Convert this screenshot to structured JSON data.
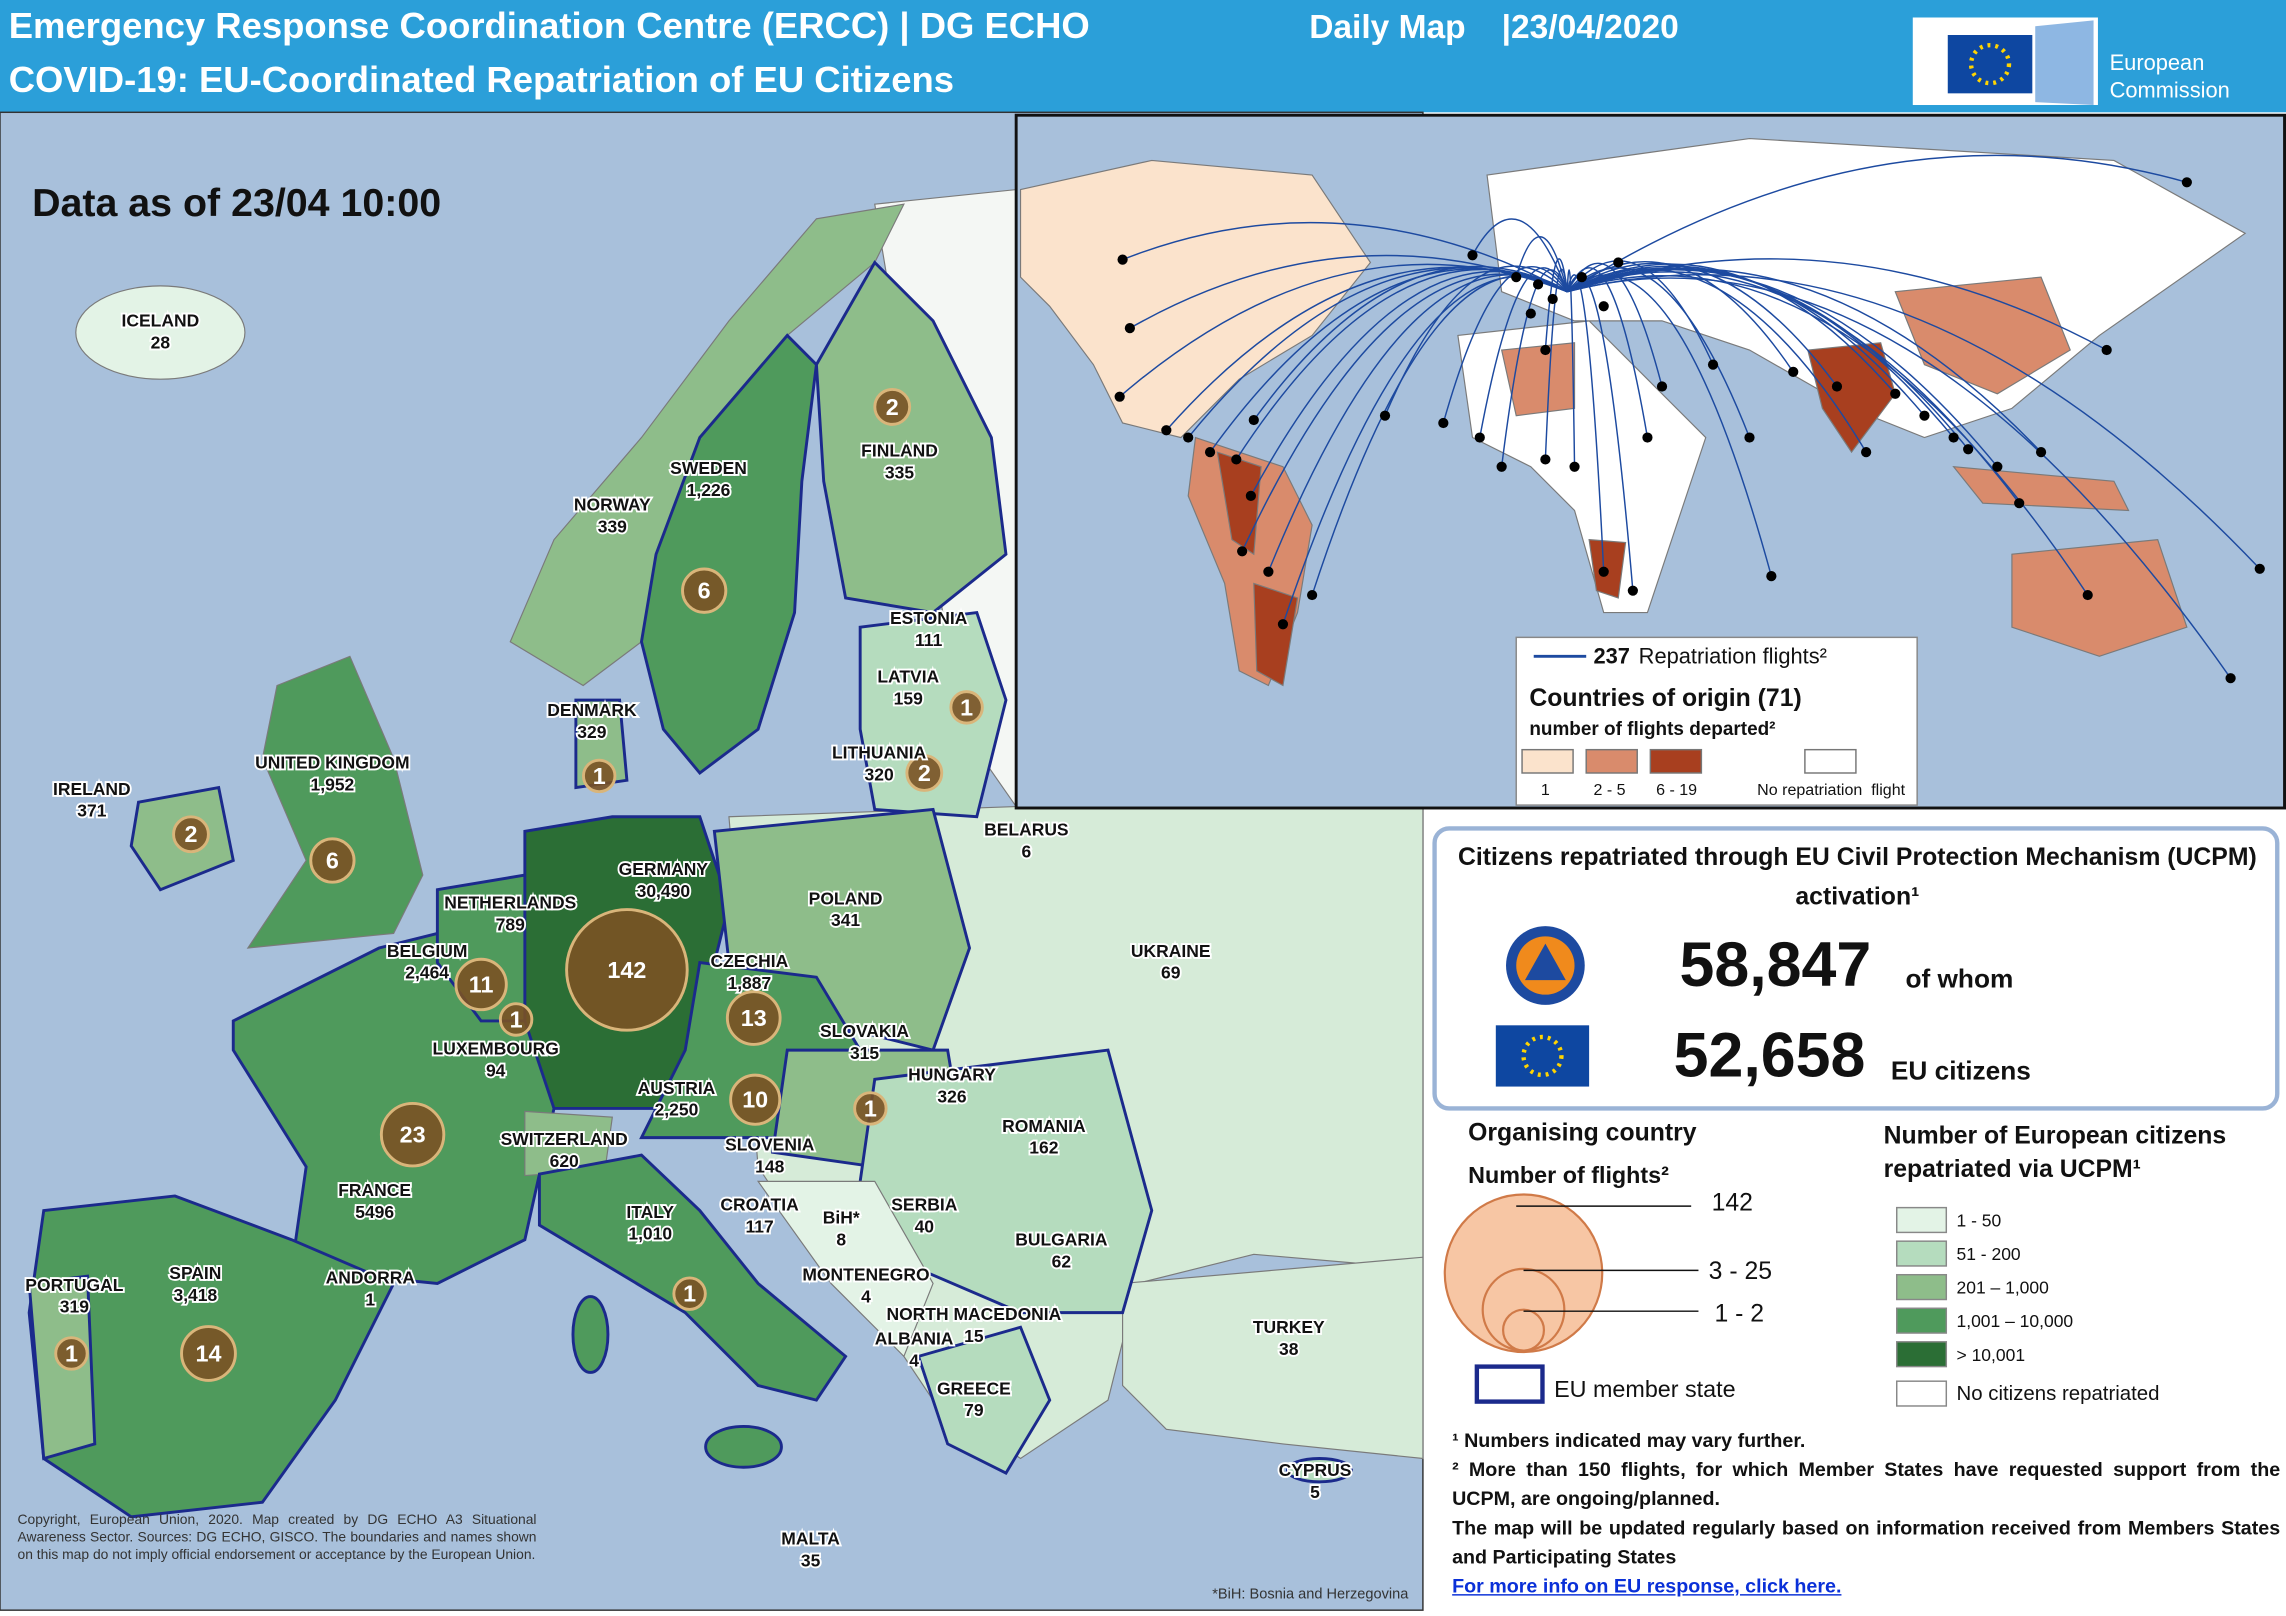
{
  "header": {
    "title": "Emergency Response Coordination Centre (ERCC) | DG ECHO",
    "map_type": "Daily Map",
    "date": "|23/04/2020",
    "subtitle": "COVID-19: EU-Coordinated Repatriation of EU Citizens",
    "logo": [
      "European",
      "Commission"
    ]
  },
  "europe_map": {
    "data_as_of": "Data as of 23/04 10:00",
    "countries": [
      {
        "name": "ICELAND",
        "citizens": "28"
      },
      {
        "name": "IRELAND",
        "citizens": "371",
        "flights": 2
      },
      {
        "name": "UNITED KINGDOM",
        "citizens": "1,952",
        "flights": 6
      },
      {
        "name": "NORWAY",
        "citizens": "339"
      },
      {
        "name": "SWEDEN",
        "citizens": "1,226",
        "flights": 6
      },
      {
        "name": "FINLAND",
        "citizens": "335",
        "flights": 2
      },
      {
        "name": "ESTONIA",
        "citizens": "111"
      },
      {
        "name": "LATVIA",
        "citizens": "159",
        "flights": 1
      },
      {
        "name": "LITHUANIA",
        "citizens": "320",
        "flights": 2
      },
      {
        "name": "DENMARK",
        "citizens": "329",
        "flights": 1
      },
      {
        "name": "NETHERLANDS",
        "citizens": "789"
      },
      {
        "name": "BELGIUM",
        "citizens": "2,464",
        "flights": 11
      },
      {
        "name": "GERMANY",
        "citizens": "30,490",
        "flights": 142
      },
      {
        "name": "LUXEMBOURG",
        "citizens": "94",
        "flights": 1
      },
      {
        "name": "POLAND",
        "citizens": "341"
      },
      {
        "name": "BELARUS",
        "citizens": "6"
      },
      {
        "name": "UKRAINE",
        "citizens": "69"
      },
      {
        "name": "CZECHIA",
        "citizens": "1,887",
        "flights": 13
      },
      {
        "name": "SLOVAKIA",
        "citizens": "315"
      },
      {
        "name": "HUNGARY",
        "citizens": "326",
        "flights": 1
      },
      {
        "name": "AUSTRIA",
        "citizens": "2,250",
        "flights": 10
      },
      {
        "name": "FRANCE",
        "citizens": "5496",
        "flights": 23
      },
      {
        "name": "SWITZERLAND",
        "citizens": "620"
      },
      {
        "name": "SLOVENIA",
        "citizens": "148"
      },
      {
        "name": "CROATIA",
        "citizens": "117"
      },
      {
        "name": "BiH*",
        "citizens": "8"
      },
      {
        "name": "SERBIA",
        "citizens": "40"
      },
      {
        "name": "ROMANIA",
        "citizens": "162"
      },
      {
        "name": "BULGARIA",
        "citizens": "62"
      },
      {
        "name": "ITALY",
        "citizens": "1,010",
        "flights": 1
      },
      {
        "name": "MONTENEGRO",
        "citizens": "4"
      },
      {
        "name": "NORTH MACEDONIA",
        "citizens": "15"
      },
      {
        "name": "ALBANIA",
        "citizens": "4"
      },
      {
        "name": "GREECE",
        "citizens": "79"
      },
      {
        "name": "TURKEY",
        "citizens": "38"
      },
      {
        "name": "CYPRUS",
        "citizens": "5"
      },
      {
        "name": "MALTA",
        "citizens": "35"
      },
      {
        "name": "SPAIN",
        "citizens": "3,418",
        "flights": 14
      },
      {
        "name": "PORTUGAL",
        "citizens": "319",
        "flights": 1
      },
      {
        "name": "ANDORRA",
        "citizens": "1"
      }
    ],
    "footnote": "*BiH: Bosnia and Herzegovina",
    "copyright": "Copyright, European Union, 2020. Map created by DG ECHO A3 Situational Awareness Sector. Sources: DG ECHO, GISCO. The boundaries and names shown on this map do not imply official endorsement or acceptance by the European Union."
  },
  "world_map": {
    "flights_count": "237",
    "flights_label": "Repatriation flights²",
    "origin_title": "Countries of origin (71)",
    "origin_subtitle": "number of flights departed²",
    "classes": [
      "1",
      "2 - 5",
      "6 - 19",
      "No repatriation  flight"
    ]
  },
  "summary": {
    "title": "Citizens repatriated through EU Civil Protection Mechanism (UCPM) activation¹",
    "total": "58,847",
    "total_note": "of whom",
    "eu": "52,658",
    "eu_note": "EU citizens"
  },
  "legend": {
    "organising_title": "Organising country",
    "flights_title": "Number of flights²",
    "sizes": [
      "142",
      "3 - 25",
      "1 - 2"
    ],
    "member_state": "EU member state",
    "citizens_title": [
      "Number of European citizens",
      "repatriated via UCPM¹"
    ],
    "classes": [
      "1 - 50",
      "51 - 200",
      "201 – 1,000",
      "1,001 – 10,000",
      "> 10,001",
      "No  citizens repatriated"
    ]
  },
  "notes": [
    "¹ Numbers indicated may vary further.",
    "² More than 150 flights, for which Member States have requested support from the UCPM, are ongoing/planned.",
    "The map will be updated regularly based on information received from Members States and Participating States"
  ],
  "link": "For more info on EU response, click here."
}
